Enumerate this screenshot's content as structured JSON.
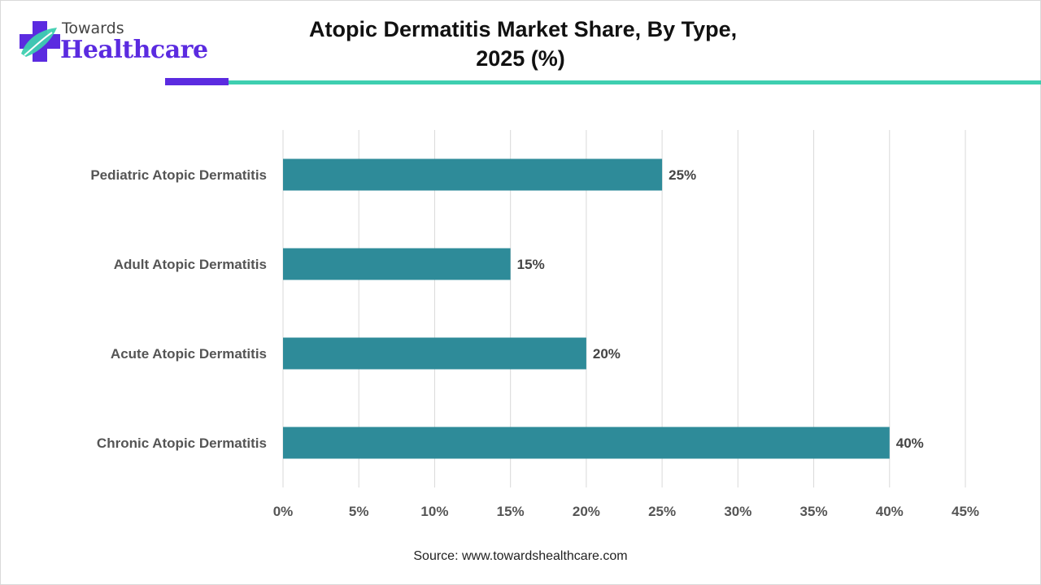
{
  "brand": {
    "name_top": "Towards",
    "name_bottom": "Healthcare",
    "primary_color": "#5b2be0",
    "accent_color": "#3ecfb0",
    "logo_icon": "medical-cross-leaf-icon"
  },
  "title": {
    "line1": "Atopic Dermatitis Market Share, By Type,",
    "line2": "2025 (%)"
  },
  "chart_data": {
    "type": "bar",
    "orientation": "horizontal",
    "title": "Atopic Dermatitis Market Share, By Type, 2025 (%)",
    "categories": [
      "Pediatric Atopic Dermatitis",
      "Adult Atopic Dermatitis",
      "Acute Atopic Dermatitis",
      "Chronic Atopic Dermatitis"
    ],
    "values": [
      25,
      15,
      20,
      40
    ],
    "data_labels": [
      "25%",
      "15%",
      "20%",
      "40%"
    ],
    "xlim": [
      0,
      45
    ],
    "x_ticks": [
      0,
      5,
      10,
      15,
      20,
      25,
      30,
      35,
      40,
      45
    ],
    "x_tick_labels": [
      "0%",
      "5%",
      "10%",
      "15%",
      "20%",
      "25%",
      "30%",
      "35%",
      "40%",
      "45%"
    ],
    "xlabel": "",
    "ylabel": "",
    "grid": true,
    "legend": false,
    "bar_color": "#2e8b99"
  },
  "source": "Source: www.towardshealthcare.com"
}
